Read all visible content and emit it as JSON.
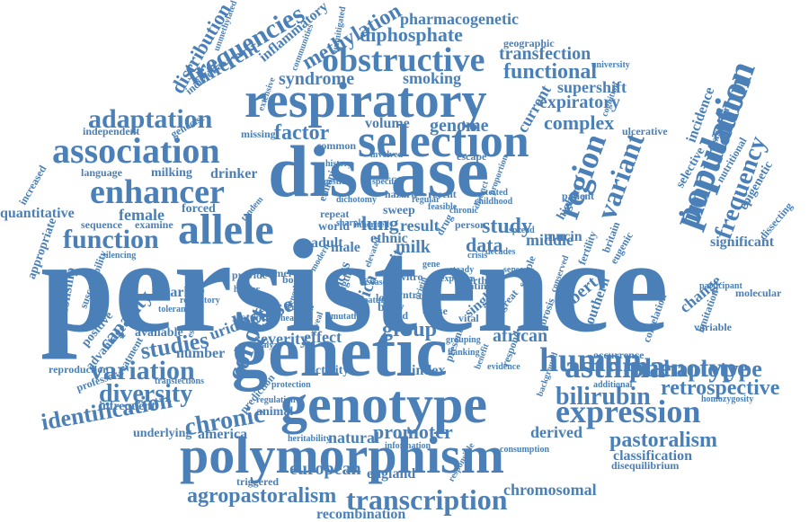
{
  "cloud": {
    "color": "#4a80b7",
    "words": [
      "persistence",
      "genetic",
      "disease",
      "genotype",
      "polymorphism",
      "respiratory",
      "selection",
      "association",
      "allele",
      "population",
      "enhancer",
      "expression",
      "human",
      "asthma",
      "phenotype",
      "obstructive",
      "imputation",
      "region",
      "variant",
      "adaptation",
      "transcription",
      "frequency",
      "cohort",
      "function",
      "variation",
      "identification",
      "diversity",
      "chronic",
      "studies",
      "bilirubin",
      "haplotype",
      "retrospective",
      "frequencies",
      "pastoralism",
      "agropastoralism",
      "promoter",
      "diphosphate",
      "functional",
      "transfection",
      "complex",
      "expiratory",
      "supershift",
      "syndrome",
      "smoking",
      "genome",
      "factor",
      "volume",
      "current",
      "methylation",
      "different",
      "distribution",
      "inflammatory",
      "pharmacogenetic",
      "quantitative",
      "female",
      "milking",
      "drinker",
      "language",
      "independent",
      "missing",
      "forced",
      "lung",
      "result",
      "ethnic",
      "study",
      "milk",
      "data",
      "middle",
      "significant",
      "epigenetic",
      "selective",
      "incidence",
      "signature",
      "mucin",
      "higher",
      "trait",
      "male",
      "adult",
      "world",
      "lactose",
      "uridine",
      "marker",
      "strong",
      "severity",
      "effect",
      "group",
      "african",
      "gilbert",
      "southern",
      "change",
      "molecular",
      "variable",
      "occurrence",
      "index",
      "activity",
      "number",
      "available",
      "capacity",
      "positive",
      "advantage",
      "relationship",
      "appropriate",
      "susceptibility",
      "reproduction",
      "professor",
      "infrequent",
      "underlying",
      "america",
      "animal",
      "natural",
      "european",
      "england",
      "triggered",
      "chromosomal",
      "recombination",
      "derived",
      "classification",
      "disequilibrium",
      "homozygosity",
      "additional",
      "correlation",
      "limitation",
      "participant",
      "sequence",
      "examine",
      "silencing",
      "tandem",
      "geographic",
      "university",
      "escape",
      "recent",
      "patient",
      "common",
      "history",
      "involved",
      "proportion",
      "ulcerative",
      "nutritional",
      "dissecting",
      "fertility",
      "britain",
      "eugenic",
      "latin",
      "single",
      "great",
      "fibrosis",
      "vitro",
      "vntr",
      "vital",
      "lower",
      "body",
      "aged",
      "cause",
      "africa",
      "mucus",
      "length",
      "length",
      "europe",
      "health",
      "analyze",
      "estimate",
      "prediction",
      "regulation",
      "protection",
      "heritability",
      "information",
      "consumption",
      "responsible",
      "tolerance",
      "regulatory",
      "herder",
      "provide",
      "former",
      "bowel",
      "reveal",
      "modern",
      "hazard",
      "sweep",
      "drug",
      "repeat",
      "person",
      "birth",
      "sample",
      "spread",
      "grouping",
      "flanking",
      "benefit",
      "evidence",
      "background",
      "respond",
      "present",
      "unmethylated",
      "transfections",
      "increased",
      "extensive",
      "genecist",
      "cognition",
      "individual",
      "communities",
      "unmitigated",
      "mutation",
      "treatment",
      "ethiopia",
      "digestion",
      "dichotomy",
      "sharply",
      "inherited",
      "elevated",
      "decades",
      "sense",
      "conserved",
      "origin",
      "distinct",
      "specific",
      "regular",
      "feasible",
      "chronic",
      "disease",
      "natural",
      "uniform",
      "exposure",
      "childhood",
      "tested",
      "steady",
      "gene",
      "crisis"
    ]
  }
}
